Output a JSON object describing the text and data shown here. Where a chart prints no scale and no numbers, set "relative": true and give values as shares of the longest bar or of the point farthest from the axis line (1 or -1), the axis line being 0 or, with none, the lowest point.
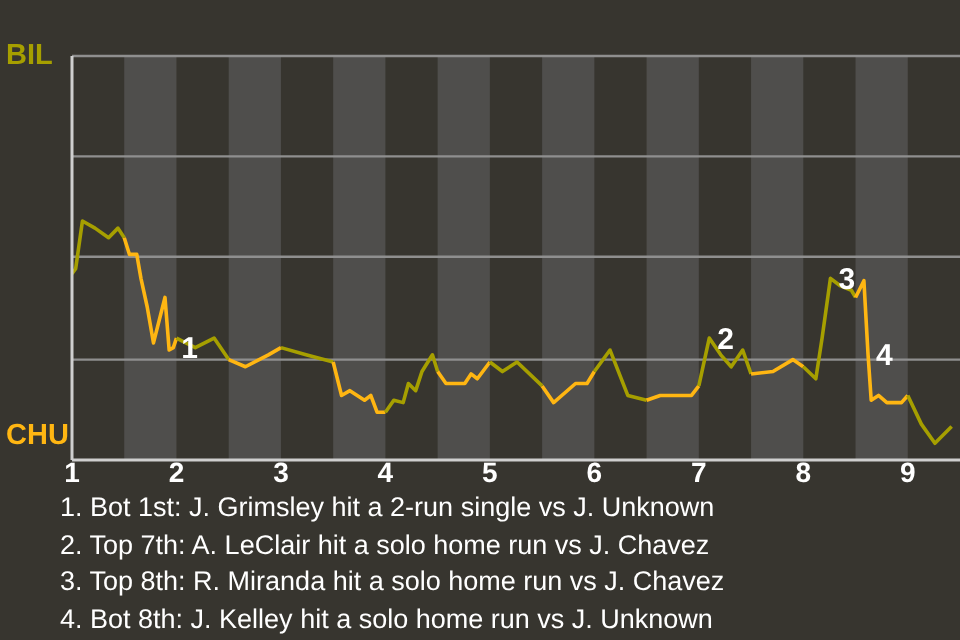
{
  "chart_data": {
    "type": "line",
    "relative": true,
    "xlim": [
      1,
      9.5
    ],
    "xticks": [
      1,
      2,
      3,
      4,
      5,
      6,
      7,
      8,
      9
    ],
    "series": [
      {
        "color": "#a69f00",
        "x": [
          1,
          1.035,
          1.1,
          1.22,
          1.35,
          1.44,
          1.5
        ],
        "values": [
          0.78,
          0.8,
          1,
          0.97,
          0.93,
          0.97,
          0.93
        ]
      },
      {
        "color": "#ffb612",
        "x": [
          1.5,
          1.55,
          1.62,
          1.66,
          1.72,
          1.78,
          1.89,
          1.93,
          1.97,
          2
        ],
        "values": [
          0.93,
          0.86,
          0.86,
          0.76,
          0.64,
          0.49,
          0.68,
          0.46,
          0.47,
          0.51
        ]
      },
      {
        "color": "#a69f00",
        "x": [
          2,
          2.18,
          2.36,
          2.5
        ],
        "values": [
          0.51,
          0.47,
          0.51,
          0.42
        ]
      },
      {
        "color": "#ffb612",
        "x": [
          2.5,
          2.66,
          2.88,
          3
        ],
        "values": [
          0.42,
          0.39,
          0.44,
          0.47
        ]
      },
      {
        "color": "#a69f00",
        "x": [
          3,
          3.24,
          3.5
        ],
        "values": [
          0.47,
          0.44,
          0.41
        ]
      },
      {
        "color": "#ffb612",
        "x": [
          3.5,
          3.58,
          3.66,
          3.8,
          3.86,
          3.92,
          3.97,
          4
        ],
        "values": [
          0.41,
          0.27,
          0.29,
          0.25,
          0.27,
          0.2,
          0.2,
          0.2
        ]
      },
      {
        "color": "#a69f00",
        "x": [
          4,
          4.08,
          4.17,
          4.22,
          4.29,
          4.35,
          4.45,
          4.5
        ],
        "values": [
          0.2,
          0.25,
          0.24,
          0.32,
          0.29,
          0.37,
          0.44,
          0.37
        ]
      },
      {
        "color": "#ffb612",
        "x": [
          4.5,
          4.58,
          4.76,
          4.82,
          4.88,
          5
        ],
        "values": [
          0.37,
          0.32,
          0.32,
          0.36,
          0.34,
          0.41
        ]
      },
      {
        "color": "#a69f00",
        "x": [
          5,
          5.12,
          5.26,
          5.5
        ],
        "values": [
          0.41,
          0.37,
          0.41,
          0.31
        ]
      },
      {
        "color": "#ffb612",
        "x": [
          5.5,
          5.61,
          5.82,
          5.93,
          6
        ],
        "values": [
          0.31,
          0.24,
          0.32,
          0.32,
          0.37
        ]
      },
      {
        "color": "#a69f00",
        "x": [
          6,
          6.15,
          6.32,
          6.5
        ],
        "values": [
          0.37,
          0.46,
          0.27,
          0.25
        ]
      },
      {
        "color": "#ffb612",
        "x": [
          6.5,
          6.63,
          6.7,
          6.93,
          7
        ],
        "values": [
          0.25,
          0.27,
          0.27,
          0.27,
          0.31
        ]
      },
      {
        "color": "#a69f00",
        "x": [
          7,
          7.1,
          7.21,
          7.31,
          7.42,
          7.5
        ],
        "values": [
          0.31,
          0.51,
          0.44,
          0.39,
          0.46,
          0.36
        ]
      },
      {
        "color": "#ffb612",
        "x": [
          7.5,
          7.71,
          7.9,
          8
        ],
        "values": [
          0.36,
          0.37,
          0.42,
          0.39
        ]
      },
      {
        "color": "#a69f00",
        "x": [
          8,
          8.12,
          8.18,
          8.26,
          8.35,
          8.46,
          8.5
        ],
        "values": [
          0.39,
          0.34,
          0.51,
          0.76,
          0.73,
          0.71,
          0.68
        ]
      },
      {
        "color": "#ffb612",
        "x": [
          8.5,
          8.58,
          8.62,
          8.65,
          8.72,
          8.8,
          8.9,
          8.94,
          9
        ],
        "values": [
          0.68,
          0.75,
          0.44,
          0.25,
          0.27,
          0.24,
          0.24,
          0.24,
          0.27
        ]
      },
      {
        "color": "#a69f00",
        "x": [
          9,
          9.13,
          9.26,
          9.42
        ],
        "values": [
          0.27,
          0.15,
          0.07,
          0.14
        ]
      }
    ],
    "ref_lines": [
      {
        "axis": "y",
        "value": 0.42,
        "color": "#8f8f8f"
      },
      {
        "axis": "y",
        "value": 0.85,
        "color": "#8f8f8f"
      },
      {
        "axis": "y",
        "value": 1.27,
        "color": "#8f8f8f"
      }
    ],
    "bands": [
      {
        "axis": "x",
        "from": 1.5,
        "to": 2,
        "color": "#4f4e4c"
      },
      {
        "axis": "x",
        "from": 2.5,
        "to": 3,
        "color": "#4f4e4c"
      },
      {
        "axis": "x",
        "from": 3.5,
        "to": 4,
        "color": "#4f4e4c"
      },
      {
        "axis": "x",
        "from": 4.5,
        "to": 5,
        "color": "#4f4e4c"
      },
      {
        "axis": "x",
        "from": 5.5,
        "to": 6,
        "color": "#4f4e4c"
      },
      {
        "axis": "x",
        "from": 6.5,
        "to": 7,
        "color": "#4f4e4c"
      },
      {
        "axis": "x",
        "from": 7.5,
        "to": 8,
        "color": "#4f4e4c"
      },
      {
        "axis": "x",
        "from": 8.5,
        "to": 9,
        "color": "#4f4e4c"
      }
    ],
    "annotations": [
      "BIL",
      "CHU",
      {
        "text": "1",
        "x": 1.97,
        "y": 0.47
      },
      {
        "text": "2",
        "x": 7.1,
        "y": 0.51
      },
      {
        "text": "3",
        "x": 8.26,
        "y": 0.76
      },
      {
        "text": "4",
        "x": 8.62,
        "y": 0.44
      },
      "1. Bot 1st: J. Grimsley hit a 2-run single vs J. Unknown",
      "2. Top 7th: A. LeClair hit a solo home run vs J. Chavez",
      "3. Top 8th: R. Miranda hit a solo home run vs J. Chavez",
      "4. Bot 8th: J. Kelley hit a solo home run vs J. Unknown"
    ]
  }
}
